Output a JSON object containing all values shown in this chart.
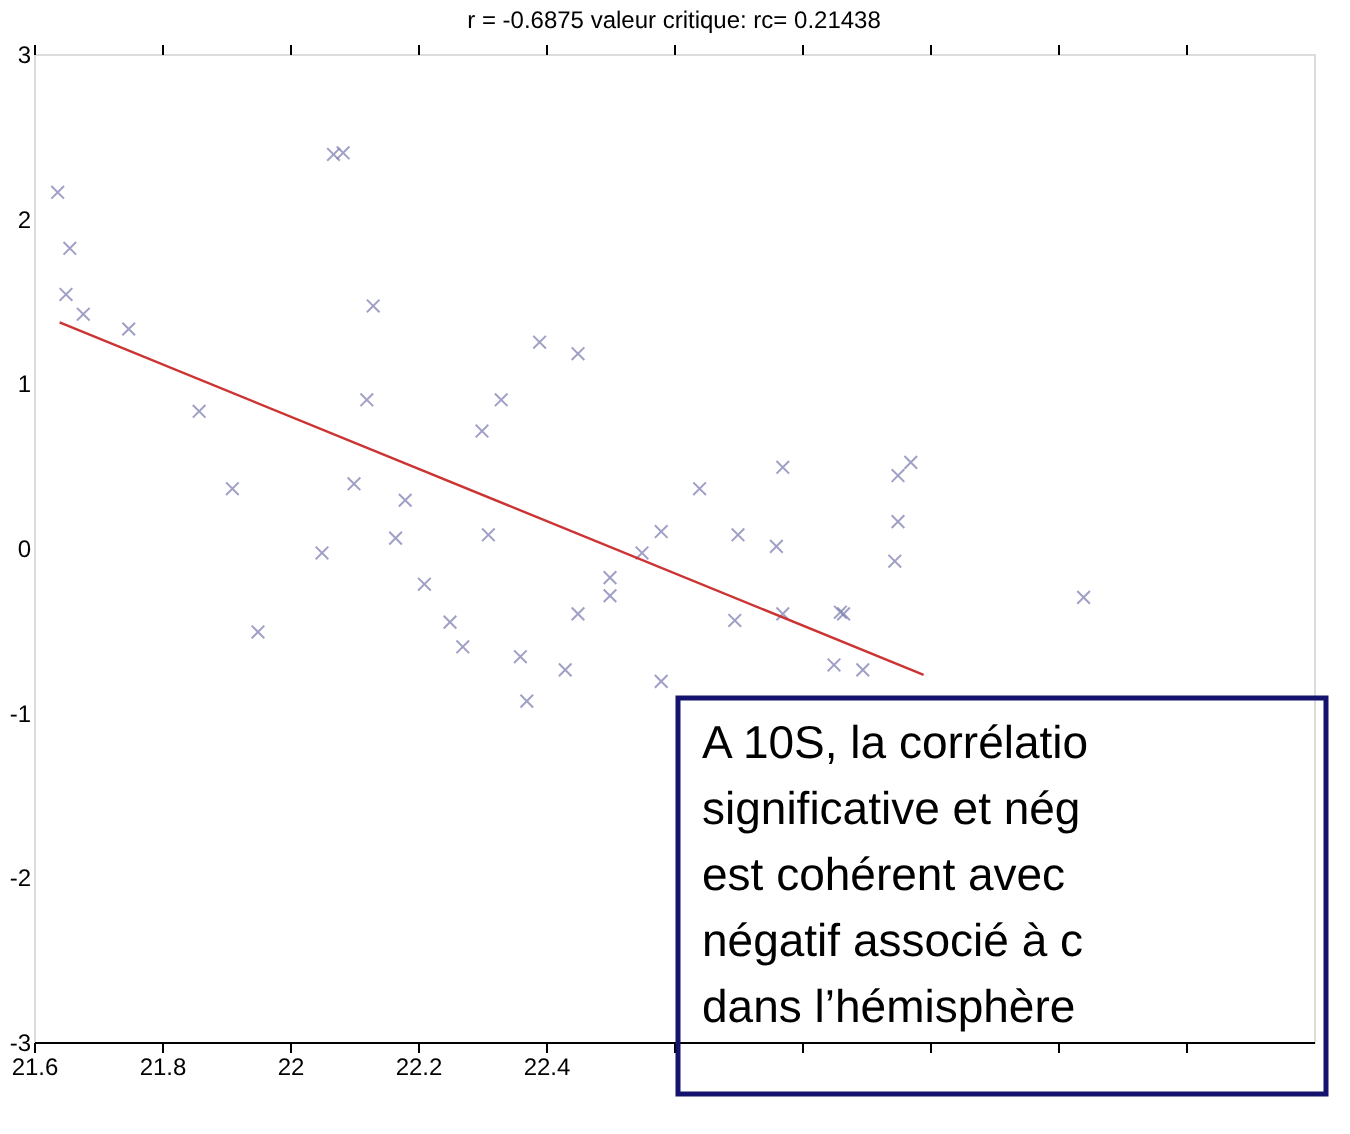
{
  "chart_data": {
    "type": "scatter",
    "title": "r = -0.6875  valeur critique: rc= 0.21438",
    "xlim": [
      21.6,
      23.6
    ],
    "ylim": [
      -3,
      3
    ],
    "xticks": [
      21.6,
      21.8,
      22,
      22.2,
      22.4,
      {
        "value": 22.6,
        "label": null
      },
      {
        "value": 22.8,
        "label": null
      },
      {
        "value": 23,
        "label": null
      },
      {
        "value": 23.2,
        "label": null
      },
      {
        "value": 23.4,
        "label": null
      }
    ],
    "yticks": [
      -3,
      -2,
      -1,
      0,
      1,
      2,
      3
    ],
    "grid": false,
    "series": [
      {
        "marker": "cross",
        "color": "#7878b0",
        "x": [
          21.637,
          21.656,
          21.65,
          21.677,
          21.748,
          21.858,
          21.91,
          22.068,
          22.083,
          22.13,
          22.12,
          22.1,
          22.18,
          22.165,
          22.05,
          22.33,
          22.3,
          22.31,
          22.39,
          22.45,
          22.55,
          22.77,
          22.95,
          22.97,
          22.64,
          22.58,
          22.7,
          22.76,
          22.95,
          22.945,
          22.5,
          22.5,
          23.24,
          22.77,
          22.86,
          22.865,
          22.695,
          22.45,
          21.95,
          22.21,
          22.25,
          22.27,
          22.36,
          22.37,
          22.43,
          22.58,
          22.85,
          22.895
        ],
        "values": [
          2.16,
          1.82,
          1.54,
          1.42,
          1.33,
          0.83,
          0.36,
          2.39,
          2.4,
          1.47,
          0.9,
          0.39,
          0.29,
          0.06,
          -0.03,
          0.9,
          0.71,
          0.08,
          1.25,
          1.18,
          -0.03,
          0.49,
          0.44,
          0.52,
          0.36,
          0.1,
          0.08,
          0.01,
          0.16,
          -0.08,
          -0.18,
          -0.29,
          -0.3,
          -0.4,
          -0.39,
          -0.4,
          -0.44,
          -0.4,
          -0.51,
          -0.22,
          -0.45,
          -0.6,
          -0.66,
          -0.93,
          -0.74,
          -0.81,
          -0.71,
          -0.74
        ]
      },
      {
        "type": "line",
        "marker": "none",
        "color": "#cc3333",
        "x": [
          21.64,
          22.99
        ],
        "values": [
          1.37,
          -0.77
        ]
      }
    ],
    "annotations": [
      "A 10S, la corrélatio\nsignificative et nég\nest cohérent avec\nnégatif associé à c\ndans l’hémisphère"
    ]
  }
}
